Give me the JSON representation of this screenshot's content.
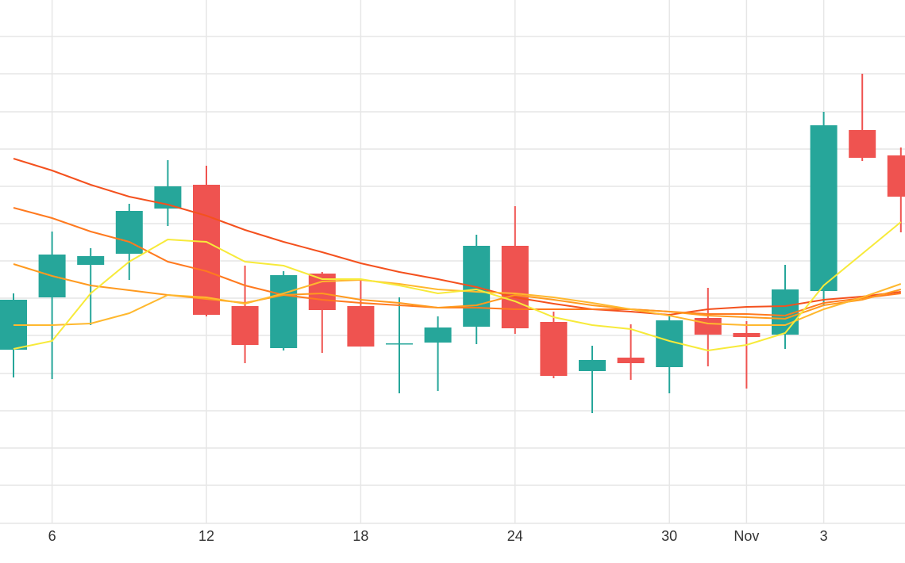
{
  "chart_data": {
    "type": "candlestick",
    "categories": [
      null,
      "6",
      null,
      null,
      null,
      "12",
      null,
      null,
      null,
      "18",
      null,
      null,
      null,
      "24",
      null,
      null,
      null,
      "30",
      null,
      "Nov",
      null,
      "3",
      null,
      null
    ],
    "open": [
      219,
      285,
      326,
      340,
      397,
      427,
      274,
      221,
      315,
      274,
      226,
      228,
      248,
      350,
      254,
      192,
      209,
      197,
      259,
      240,
      238,
      293,
      496,
      464
    ],
    "high": [
      290,
      368,
      347,
      403,
      458,
      451,
      325,
      318,
      317,
      308,
      285,
      261,
      364,
      400,
      267,
      224,
      251,
      262,
      297,
      255,
      326,
      519,
      567,
      474
    ],
    "low": [
      184,
      182,
      250,
      307,
      375,
      261,
      202,
      218,
      215,
      223,
      164,
      167,
      226,
      239,
      183,
      139,
      181,
      164,
      198,
      170,
      220,
      274,
      457,
      367
    ],
    "close": [
      282,
      339,
      337,
      394,
      425,
      263,
      225,
      313,
      269,
      223,
      227,
      247,
      350,
      246,
      186,
      206,
      202,
      256,
      238,
      235,
      295,
      502,
      461,
      412
    ],
    "up_color": "#26a69a",
    "down_color": "#ef5350",
    "lines": [
      {
        "color": "#f4511e",
        "values": [
          460,
          445,
          427,
          412,
          402,
          388,
          370,
          355,
          342,
          328,
          317,
          308,
          298,
          285,
          277,
          270,
          267,
          263,
          270,
          273,
          274,
          282,
          286,
          292
        ]
      },
      {
        "color": "#ff7a1f",
        "values": [
          398,
          385,
          368,
          355,
          330,
          318,
          300,
          288,
          282,
          278,
          275,
          272,
          272,
          270,
          270,
          270,
          270,
          267,
          264,
          264,
          262,
          278,
          284,
          290
        ]
      },
      {
        "color": "#ff9a1f",
        "values": [
          327,
          312,
          300,
          294,
          288,
          283,
          278,
          288,
          290,
          282,
          278,
          272,
          275,
          288,
          282,
          275,
          270,
          267,
          262,
          260,
          258,
          275,
          282,
          295
        ]
      },
      {
        "color": "#ffb82e",
        "values": [
          250,
          250,
          252,
          265,
          288,
          285,
          277,
          290,
          305,
          307,
          302,
          295,
          292,
          290,
          285,
          278,
          270,
          262,
          252,
          250,
          250,
          270,
          285,
          302
        ]
      },
      {
        "color": "#f7ea3a",
        "values": [
          220,
          230,
          290,
          330,
          358,
          355,
          330,
          325,
          308,
          308,
          300,
          290,
          295,
          280,
          260,
          250,
          245,
          230,
          218,
          225,
          240,
          300,
          340,
          380
        ]
      }
    ],
    "ylim": [
      0,
      660
    ],
    "ygrid": [
      48,
      95,
      142,
      189,
      237,
      284,
      331,
      378,
      425,
      472,
      519,
      567,
      614
    ]
  }
}
